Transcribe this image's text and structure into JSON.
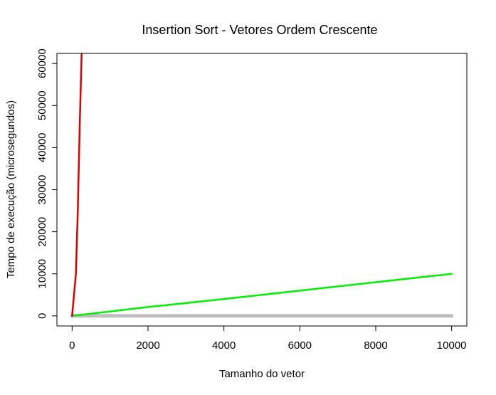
{
  "chart_data": {
    "type": "line",
    "title": "Insertion Sort - Vetores Ordem Crescente",
    "xlabel": "Tamanho do vetor",
    "ylabel": "Tempo de execução (microsegundos)",
    "xlim": [
      -400,
      10400
    ],
    "ylim": [
      -2400,
      62400
    ],
    "xticks": [
      0,
      2000,
      4000,
      6000,
      8000,
      10000
    ],
    "yticks": [
      0,
      10000,
      20000,
      30000,
      40000,
      50000,
      60000
    ],
    "grid": false,
    "series": [
      {
        "color": "#dd0000",
        "x": [
          0,
          100,
          150,
          200,
          250,
          300
        ],
        "y": [
          0,
          10000,
          25000,
          45000,
          62000,
          80000
        ]
      },
      {
        "color": "#00ee00",
        "x": [
          0,
          2000,
          4000,
          6000,
          8000,
          10000
        ],
        "y": [
          0,
          2100,
          4000,
          6000,
          8000,
          10000
        ]
      },
      {
        "color": "#bebebe",
        "x": [
          0,
          2000,
          4000,
          6000,
          8000,
          10000
        ],
        "y": [
          0,
          0,
          0,
          0,
          0,
          0
        ]
      }
    ]
  }
}
